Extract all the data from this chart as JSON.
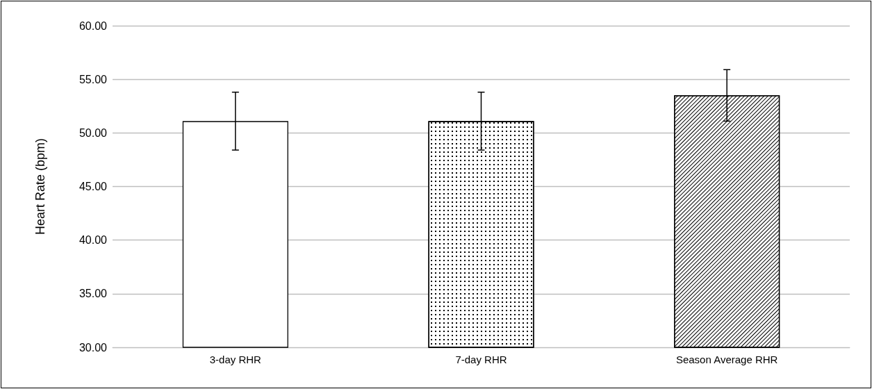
{
  "chart_data": {
    "type": "bar",
    "ylabel": "Heart Rate (bpm)",
    "categories": [
      "3-day RHR",
      "7-day RHR",
      "Season Average RHR"
    ],
    "values": [
      51.1,
      51.1,
      53.5
    ],
    "errors": [
      2.7,
      2.7,
      2.4
    ],
    "colors": [
      "#ffffff",
      "#ffffff",
      "#ffffff"
    ],
    "ylim": [
      30,
      60
    ],
    "yticks": [
      {
        "value": 30,
        "label": "30.00"
      },
      {
        "value": 35,
        "label": "35.00"
      },
      {
        "value": 40,
        "label": "40.00"
      },
      {
        "value": 45,
        "label": "45.00"
      },
      {
        "value": 50,
        "label": "50.00"
      },
      {
        "value": 55,
        "label": "55.00"
      },
      {
        "value": 60,
        "label": "60.00"
      }
    ],
    "grid": "y"
  }
}
